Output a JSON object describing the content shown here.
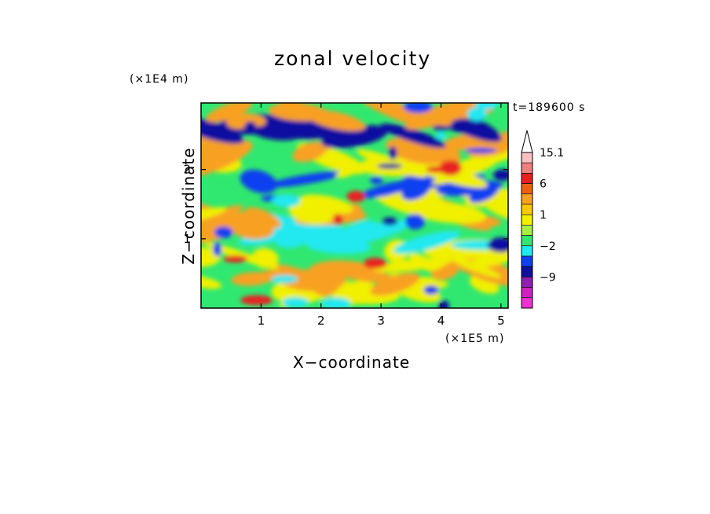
{
  "chart_data": {
    "type": "heatmap",
    "title": "zonal velocity",
    "xlabel": "X−coordinate",
    "ylabel": "Z−coordinate",
    "x_unit": "(×1E5 m)",
    "y_unit": "(×1E4 m)",
    "time_label": "t=189600 s",
    "xlim": [
      0,
      5.12
    ],
    "ylim": [
      0,
      2.96
    ],
    "x_ticks": [
      1,
      2,
      3,
      4,
      5
    ],
    "x_tick_labels": [
      "1",
      "2",
      "3",
      "4",
      "5"
    ],
    "y_ticks": [
      1,
      2
    ],
    "y_tick_labels": [
      "1",
      "2"
    ],
    "grid": false,
    "colorbar": {
      "extend_max": true,
      "levels": [
        {
          "label": "15.1",
          "color": "#f8c0c0"
        },
        {
          "label": "",
          "color": "#f08080"
        },
        {
          "label": "",
          "color": "#e82020"
        },
        {
          "label": "6",
          "color": "#f06010"
        },
        {
          "label": "",
          "color": "#f8a020"
        },
        {
          "label": "",
          "color": "#f8c800"
        },
        {
          "label": "1",
          "color": "#f0f000"
        },
        {
          "label": "",
          "color": "#a8f040"
        },
        {
          "label": "",
          "color": "#30e870"
        },
        {
          "label": "−2",
          "color": "#20e8f0"
        },
        {
          "label": "",
          "color": "#1040f0"
        },
        {
          "label": "",
          "color": "#1010a0"
        },
        {
          "label": "−9",
          "color": "#9020b0"
        },
        {
          "label": "",
          "color": "#d020c0"
        },
        {
          "label": "",
          "color": "#f030d0"
        }
      ],
      "shown_values": [
        15.1,
        6,
        1,
        -2,
        -9
      ]
    },
    "colors": {
      "strong_positive": "#e82020",
      "positive": "#f8a020",
      "weak_positive": "#f0f000",
      "near_zero": "#30e870",
      "weak_negative": "#20e8f0",
      "negative": "#1040f0",
      "strong_negative": "#1010a0"
    }
  }
}
